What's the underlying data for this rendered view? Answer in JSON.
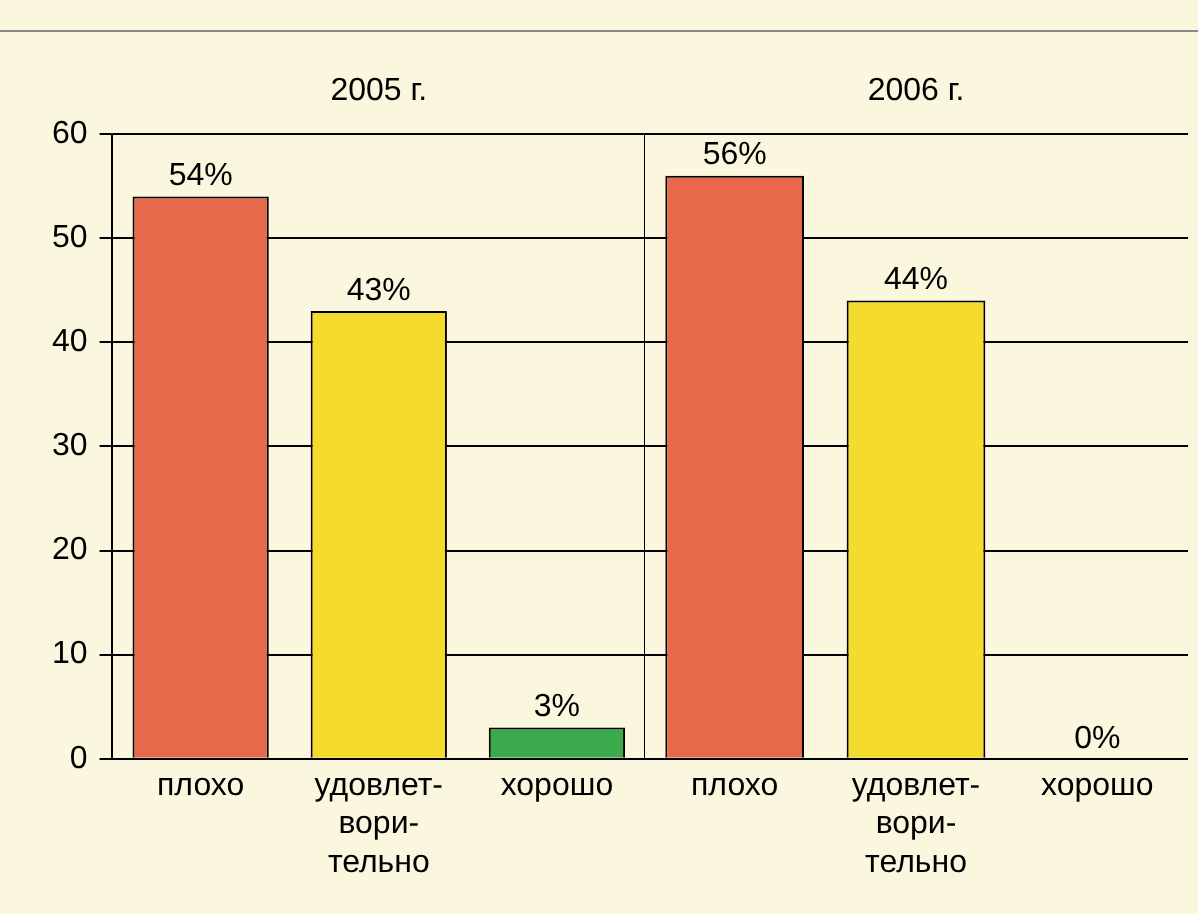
{
  "chart_data": [
    {
      "type": "bar",
      "title": "2005 г.",
      "categories": [
        "плохо",
        "удовлет-\nвори-\nтельно",
        "хорошо"
      ],
      "values": [
        54,
        43,
        3
      ],
      "colors": [
        "#e8694a",
        "#f5dc2c",
        "#3aaa4c"
      ],
      "value_labels": [
        "54%",
        "43%",
        "3%"
      ],
      "ylim": [
        0,
        60
      ],
      "yticks": [
        0,
        10,
        20,
        30,
        40,
        50,
        60
      ],
      "grid": "y"
    },
    {
      "type": "bar",
      "title": "2006 г.",
      "categories": [
        "плохо",
        "удовлет-\nвори-\nтельно",
        "хорошо"
      ],
      "values": [
        56,
        44,
        0
      ],
      "colors": [
        "#e8694a",
        "#f5dc2c",
        "#3aaa4c"
      ],
      "value_labels": [
        "56%",
        "44%",
        "0%"
      ],
      "ylim": [
        0,
        60
      ],
      "yticks": [
        0,
        10,
        20,
        30,
        40,
        50,
        60
      ],
      "grid": "y",
      "tick_labels": "x"
    }
  ]
}
